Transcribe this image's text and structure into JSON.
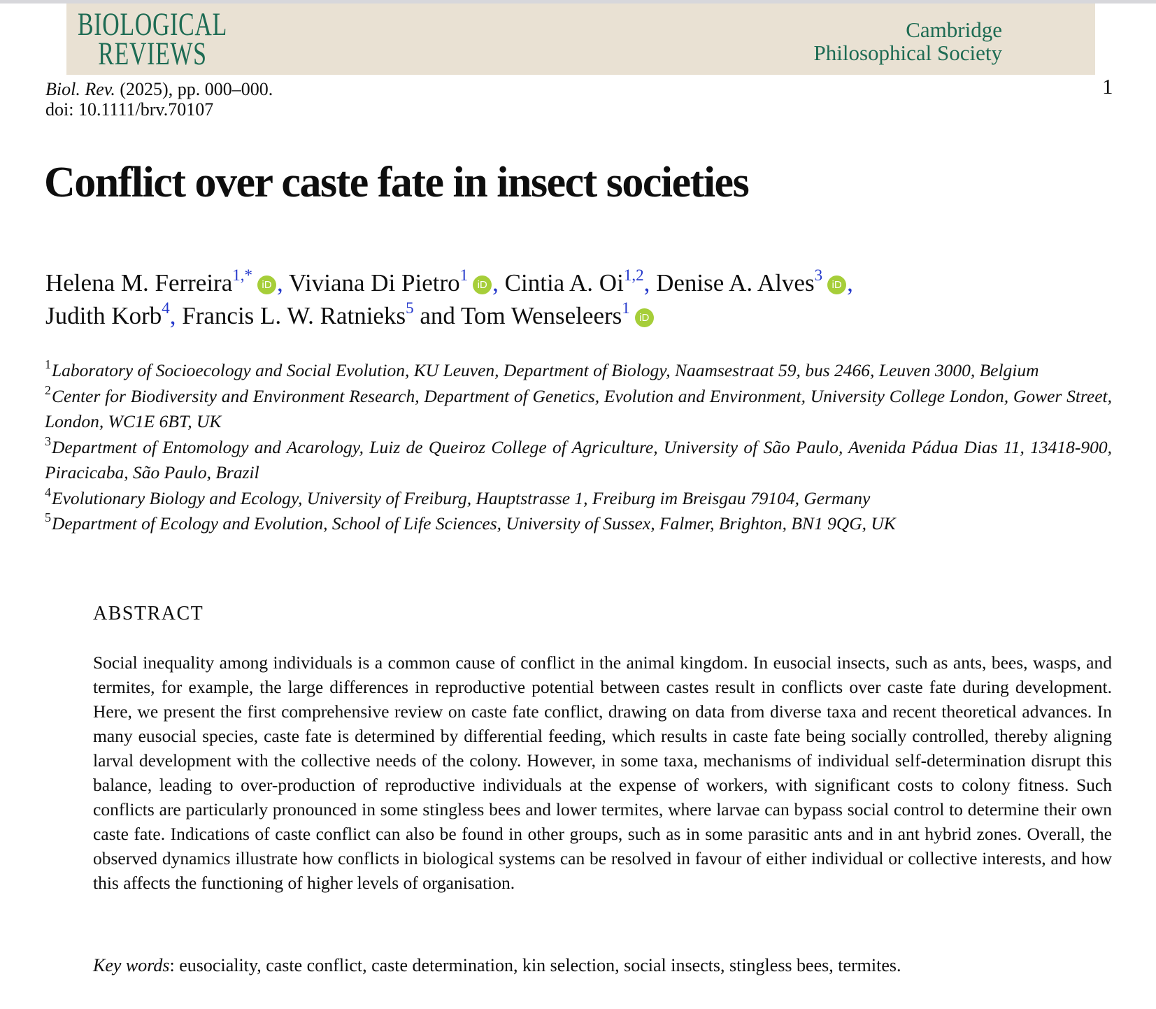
{
  "page": {
    "number": "1"
  },
  "masthead": {
    "journal_line1": "BIOLOGICAL",
    "journal_line2": "REVIEWS",
    "society_line1": "Cambridge",
    "society_line2": "Philosophical Society",
    "banner_bg": "#e9e1d3",
    "green": "#1d6b53"
  },
  "citation": {
    "journal_abbrev": "Biol. Rev.",
    "rest": " (2025), pp. 000–000.",
    "doi_line": "doi: 10.1111/brv.70107"
  },
  "article": {
    "title": "Conflict over caste fate in insect societies"
  },
  "icons": {
    "orcid_label": "iD",
    "orcid_color": "#a6ce39"
  },
  "authors": {
    "superscript_color": "#2438cb",
    "list": [
      {
        "name": "Helena M. Ferreira",
        "sup": "1,*",
        "orcid": true,
        "sep": ", "
      },
      {
        "name": "Viviana Di Pietro",
        "sup": "1",
        "orcid": true,
        "sep": ", "
      },
      {
        "name": "Cintia A. Oi",
        "sup": "1,2",
        "orcid": false,
        "sep": ", "
      },
      {
        "name": "Denise A. Alves",
        "sup": "3",
        "orcid": true,
        "sep": ", "
      },
      {
        "name": "Judith Korb",
        "sup": "4",
        "orcid": false,
        "sep": ", "
      },
      {
        "name": "Francis L. W. Ratnieks",
        "sup": "5",
        "orcid": false,
        "sep": " and "
      },
      {
        "name": "Tom Wenseleers",
        "sup": "1",
        "orcid": true,
        "sep": ""
      }
    ]
  },
  "affiliations": [
    {
      "sup": "1",
      "text": "Laboratory of Socioecology and Social Evolution, KU Leuven, Department of Biology, Naamsestraat 59, bus 2466, Leuven 3000, Belgium"
    },
    {
      "sup": "2",
      "text": "Center for Biodiversity and Environment Research, Department of Genetics, Evolution and Environment, University College London, Gower Street, London, WC1E 6BT, UK"
    },
    {
      "sup": "3",
      "text": "Department of Entomology and Acarology, Luiz de Queiroz College of Agriculture, University of São Paulo, Avenida Pádua Dias 11, 13418-900, Piracicaba, São Paulo, Brazil"
    },
    {
      "sup": "4",
      "text": "Evolutionary Biology and Ecology, University of Freiburg, Hauptstrasse 1, Freiburg im Breisgau 79104, Germany"
    },
    {
      "sup": "5",
      "text": "Department of Ecology and Evolution, School of Life Sciences, University of Sussex, Falmer, Brighton, BN1 9QG, UK"
    }
  ],
  "abstract": {
    "heading": "ABSTRACT",
    "body": "Social inequality among individuals is a common cause of conflict in the animal kingdom. In eusocial insects, such as ants, bees, wasps, and termites, for example, the large differences in reproductive potential between castes result in conflicts over caste fate during development. Here, we present the first comprehensive review on caste fate conflict, drawing on data from diverse taxa and recent theoretical advances. In many eusocial species, caste fate is determined by differential feeding, which results in caste fate being socially controlled, thereby aligning larval development with the collective needs of the colony. However, in some taxa, mechanisms of individual self-determination disrupt this balance, leading to over-production of reproductive individuals at the expense of workers, with significant costs to colony fitness. Such conflicts are particularly pronounced in some stingless bees and lower termites, where larvae can bypass social control to determine their own caste fate. Indications of caste conflict can also be found in other groups, such as in some parasitic ants and in ant hybrid zones. Overall, the observed dynamics illustrate how conflicts in biological systems can be resolved in favour of either individual or collective interests, and how this affects the functioning of higher levels of organisation."
  },
  "keywords": {
    "label": "Key words",
    "text": ":  eusociality, caste conflict, caste determination, kin selection, social insects, stingless bees, termites."
  }
}
